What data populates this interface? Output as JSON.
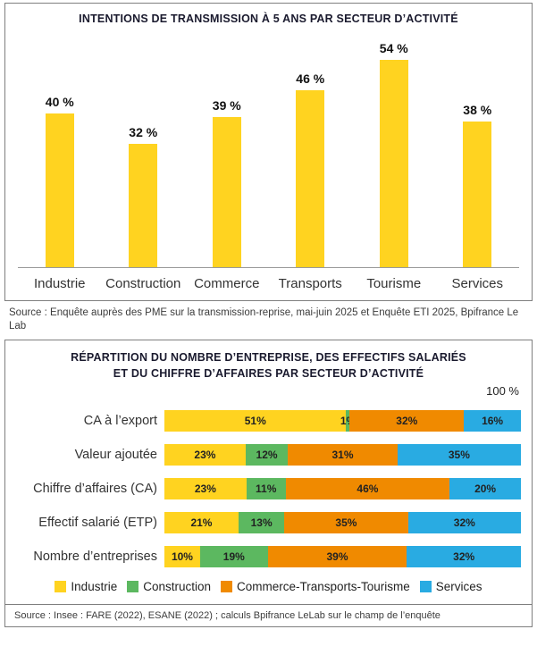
{
  "page": {
    "chart1_source": "Source : Enquête auprès des PME sur la transmission-reprise, mai-juin 2025 et Enquête ETI 2025, Bpifrance Le Lab",
    "chart2_source": "Source : Insee : FARE (2022), ESANE (2022) ; calculs Bpifrance LeLab sur le champ de l’enquête"
  },
  "colors": {
    "industrie_yellow": "#FFD320",
    "construction_green": "#5CB860",
    "commerce_orange": "#F08A00",
    "services_blue": "#29ABE2",
    "title_navy": "#1a1a2e",
    "panel_border": "#7f7f7f"
  },
  "chart_data": [
    {
      "type": "bar",
      "title": "INTENTIONS DE TRANSMISSION À 5 ANS PAR SECTEUR D’ACTIVITÉ",
      "categories": [
        "Industrie",
        "Construction",
        "Commerce",
        "Transports",
        "Tourisme",
        "Services"
      ],
      "values": [
        40,
        32,
        39,
        46,
        54,
        38
      ],
      "label_suffix": " %",
      "bar_color": "#FFD320",
      "ylim": [
        0,
        60
      ],
      "grid": false,
      "legend": "none"
    },
    {
      "type": "bar-horizontal-stacked",
      "title": "RÉPARTITION DU NOMBRE D’ENTREPRISE, DES EFFECTIFS SALARIÉS ET DU CHIFFRE D’AFFAIRES PAR SECTEUR D’ACTIVITÉ",
      "axis_max_label": "100 %",
      "xlim": [
        0,
        100
      ],
      "categories": [
        "CA à l’export",
        "Valeur ajoutée",
        "Chiffre d’affaires (CA)",
        "Effectif salarié (ETP)",
        "Nombre d’entreprises"
      ],
      "series": [
        {
          "name": "Industrie",
          "color": "#FFD320",
          "values": [
            51,
            23,
            23,
            21,
            10
          ]
        },
        {
          "name": "Construction",
          "color": "#5CB860",
          "values": [
            1,
            12,
            11,
            13,
            19
          ]
        },
        {
          "name": "Commerce-Transports-Tourisme",
          "color": "#F08A00",
          "values": [
            32,
            31,
            46,
            35,
            39
          ]
        },
        {
          "name": "Services",
          "color": "#29ABE2",
          "values": [
            16,
            35,
            20,
            32,
            32
          ]
        }
      ],
      "label_suffix": "%",
      "legend_position": "bottom"
    }
  ]
}
